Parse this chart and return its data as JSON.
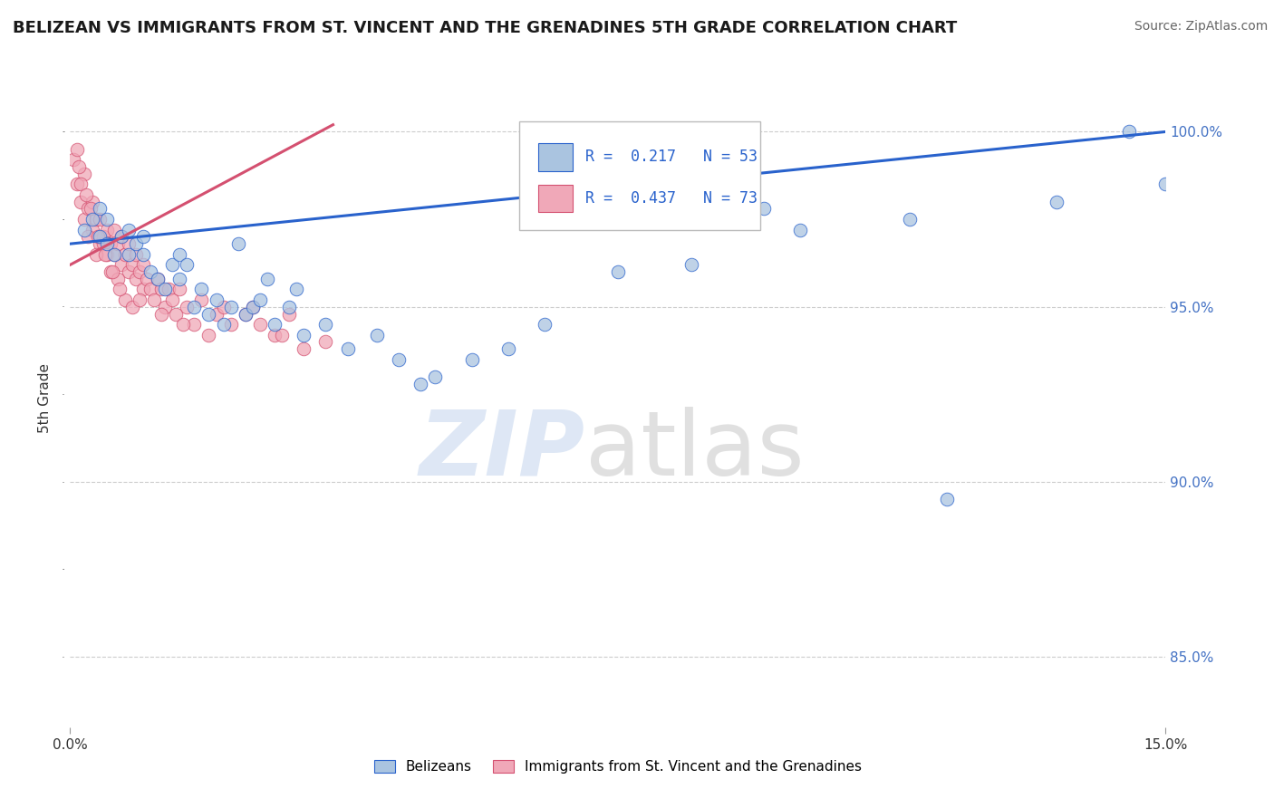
{
  "title": "BELIZEAN VS IMMIGRANTS FROM ST. VINCENT AND THE GRENADINES 5TH GRADE CORRELATION CHART",
  "source": "Source: ZipAtlas.com",
  "ylabel": "5th Grade",
  "xmin": 0.0,
  "xmax": 15.0,
  "ymin": 83.0,
  "ymax": 101.8,
  "legend_r1": "R =  0.217",
  "legend_n1": "N = 53",
  "legend_r2": "R =  0.437",
  "legend_n2": "N = 73",
  "color_blue": "#aac4e0",
  "color_pink": "#f0a8b8",
  "line_blue": "#2962cc",
  "line_pink": "#d45070",
  "legend_label1": "Belizeans",
  "legend_label2": "Immigrants from St. Vincent and the Grenadines",
  "blue_trend_x": [
    0.0,
    15.0
  ],
  "blue_trend_y": [
    96.8,
    100.0
  ],
  "pink_trend_x": [
    0.0,
    3.6
  ],
  "pink_trend_y": [
    96.2,
    100.2
  ],
  "blue_x": [
    0.2,
    0.3,
    0.4,
    0.4,
    0.5,
    0.5,
    0.6,
    0.7,
    0.8,
    0.8,
    0.9,
    1.0,
    1.0,
    1.1,
    1.2,
    1.3,
    1.4,
    1.5,
    1.5,
    1.6,
    1.7,
    1.8,
    1.9,
    2.0,
    2.1,
    2.2,
    2.4,
    2.5,
    2.6,
    2.8,
    3.0,
    3.2,
    3.5,
    3.8,
    4.2,
    4.5,
    5.0,
    5.5,
    6.0,
    6.5,
    7.5,
    8.5,
    10.0,
    11.5,
    13.5,
    14.5,
    15.0,
    2.3,
    2.7,
    3.1,
    4.8,
    9.5,
    12.0
  ],
  "blue_y": [
    97.2,
    97.5,
    97.0,
    97.8,
    96.8,
    97.5,
    96.5,
    97.0,
    96.5,
    97.2,
    96.8,
    96.5,
    97.0,
    96.0,
    95.8,
    95.5,
    96.2,
    95.8,
    96.5,
    96.2,
    95.0,
    95.5,
    94.8,
    95.2,
    94.5,
    95.0,
    94.8,
    95.0,
    95.2,
    94.5,
    95.0,
    94.2,
    94.5,
    93.8,
    94.2,
    93.5,
    93.0,
    93.5,
    93.8,
    94.5,
    96.0,
    96.2,
    97.2,
    97.5,
    98.0,
    100.0,
    98.5,
    96.8,
    95.8,
    95.5,
    92.8,
    97.8,
    89.5
  ],
  "pink_x": [
    0.05,
    0.1,
    0.1,
    0.15,
    0.2,
    0.2,
    0.25,
    0.3,
    0.3,
    0.35,
    0.4,
    0.4,
    0.45,
    0.5,
    0.5,
    0.55,
    0.6,
    0.6,
    0.65,
    0.7,
    0.7,
    0.75,
    0.8,
    0.8,
    0.85,
    0.9,
    0.9,
    0.95,
    1.0,
    1.0,
    1.05,
    1.1,
    1.15,
    1.2,
    1.25,
    1.3,
    1.35,
    1.4,
    1.5,
    1.6,
    1.8,
    2.0,
    2.2,
    2.5,
    2.8,
    3.0,
    0.15,
    0.25,
    0.35,
    0.55,
    0.65,
    0.75,
    0.85,
    1.45,
    1.7,
    1.9,
    2.1,
    2.4,
    2.6,
    0.45,
    0.95,
    1.25,
    1.55,
    2.9,
    3.2,
    3.5,
    0.12,
    0.22,
    0.28,
    0.38,
    0.48,
    0.58,
    0.68
  ],
  "pink_y": [
    99.2,
    98.5,
    99.5,
    98.0,
    97.5,
    98.8,
    97.8,
    97.2,
    98.0,
    97.5,
    96.8,
    97.5,
    97.0,
    96.5,
    97.2,
    96.8,
    96.5,
    97.2,
    96.8,
    96.2,
    97.0,
    96.5,
    96.0,
    96.8,
    96.2,
    95.8,
    96.5,
    96.0,
    95.5,
    96.2,
    95.8,
    95.5,
    95.2,
    95.8,
    95.5,
    95.0,
    95.5,
    95.2,
    95.5,
    95.0,
    95.2,
    94.8,
    94.5,
    95.0,
    94.2,
    94.8,
    98.5,
    97.0,
    96.5,
    96.0,
    95.8,
    95.2,
    95.0,
    94.8,
    94.5,
    94.2,
    95.0,
    94.8,
    94.5,
    96.8,
    95.2,
    94.8,
    94.5,
    94.2,
    93.8,
    94.0,
    99.0,
    98.2,
    97.8,
    97.0,
    96.5,
    96.0,
    95.5
  ]
}
